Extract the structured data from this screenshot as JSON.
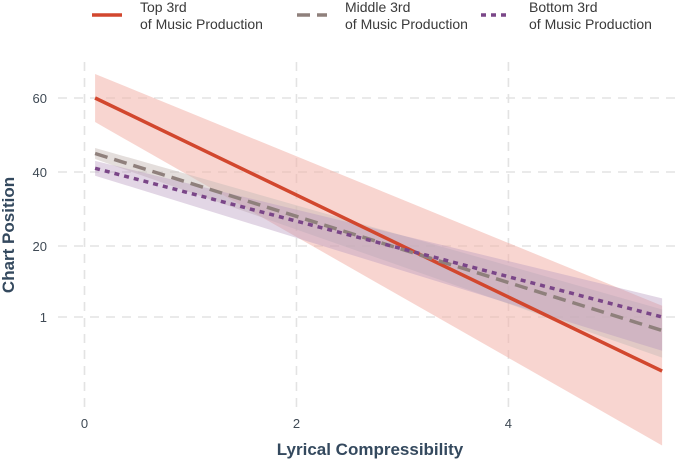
{
  "chart_data": {
    "type": "line",
    "title": "",
    "xlabel": "Lyrical Compressibility",
    "ylabel": "Chart Position",
    "xlim": [
      -0.25,
      5.6
    ],
    "x_ticks": [
      0,
      2,
      4
    ],
    "x_tick_labels": [
      "0",
      "2",
      "4"
    ],
    "y_ticks": [
      1,
      20,
      40,
      60
    ],
    "y_tick_labels": [
      "1",
      "20",
      "40",
      "60"
    ],
    "y_scale": "piecewise-linear",
    "y_axis_map": [
      [
        -20,
        459
      ],
      [
        1,
        317
      ],
      [
        20,
        246
      ],
      [
        40,
        172
      ],
      [
        60,
        98
      ],
      [
        80,
        24
      ]
    ],
    "grid": true,
    "legend_position": "top",
    "series": [
      {
        "name": "Top 3rd\nof Music Production",
        "color": "#d2472e",
        "dash": "solid",
        "band_color": "#f3b3a9",
        "band_opacity": 0.55,
        "x": [
          0.1,
          5.45
        ],
        "y": [
          60,
          -7
        ],
        "lower": [
          53.5,
          -18
        ],
        "upper": [
          66.5,
          4
        ]
      },
      {
        "name": "Middle 3rd\nof Music Production",
        "color": "#8f807c",
        "dash": "dashed",
        "band_color": "#c9bdb9",
        "band_opacity": 0.5,
        "x": [
          0.1,
          5.45
        ],
        "y": [
          45,
          -1
        ],
        "lower": [
          43.5,
          -5
        ],
        "upper": [
          46.5,
          3
        ]
      },
      {
        "name": "Bottom 3rd\nof Music Production",
        "color": "#7a4688",
        "dash": "dotted",
        "band_color": "#b698bf",
        "band_opacity": 0.4,
        "x": [
          0.1,
          5.45
        ],
        "y": [
          41,
          1
        ],
        "lower": [
          39,
          -4
        ],
        "upper": [
          43,
          6
        ]
      }
    ]
  }
}
